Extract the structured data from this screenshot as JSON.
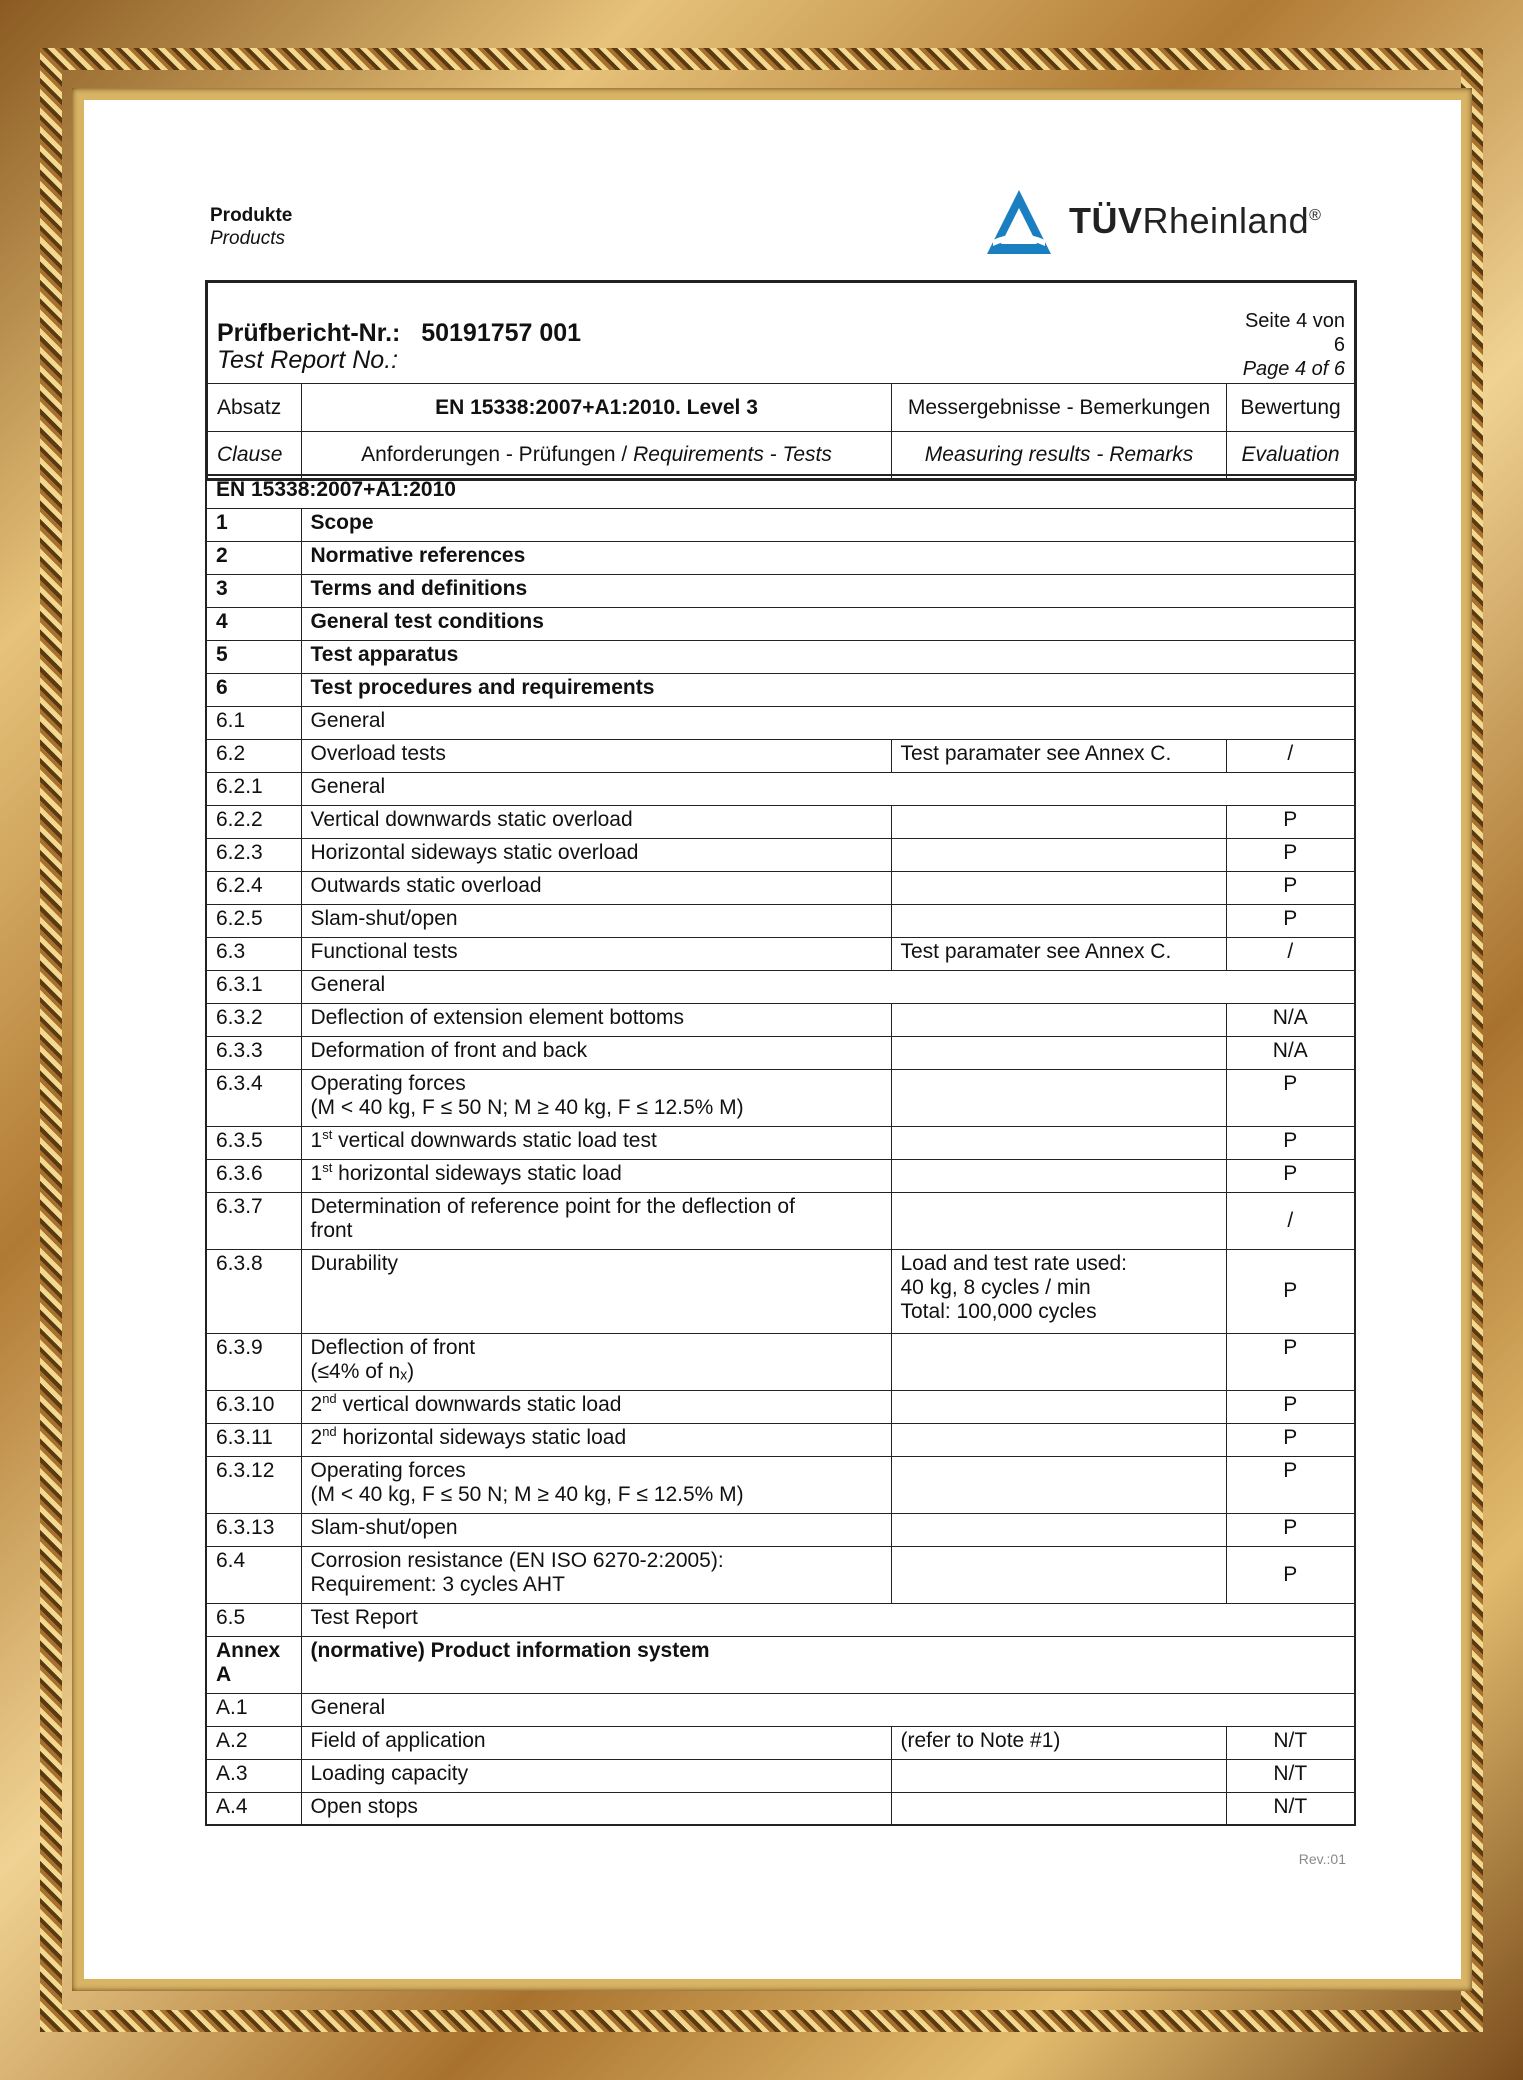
{
  "header": {
    "dept_de": "Produkte",
    "dept_en": "Products",
    "logo_text_bold": "TÜV",
    "logo_text": "Rheinland",
    "logo_mark": "®",
    "logo_color": "#1a7fc1"
  },
  "report": {
    "label_de": "Prüfbericht-Nr.:",
    "number": "50191757 001",
    "label_en": "Test Report No.:",
    "page_de": "Seite 4 von 6",
    "page_en": "Page 4 of 6"
  },
  "columns": {
    "clause_de": "Absatz",
    "clause_en": "Clause",
    "standard": "EN 15338:2007+A1:2010. Level 3",
    "req_de": "Anforderungen - Prüfungen / ",
    "req_en": "Requirements - Tests",
    "remarks_de": "Messergebnisse - Bemerkungen",
    "remarks_en": "Measuring results - Remarks",
    "eval_de": "Bewertung",
    "eval_en": "Evaluation"
  },
  "table_title": "EN 15338:2007+A1:2010",
  "rows": [
    {
      "clause": "1",
      "req": "Scope",
      "bold": true,
      "span": true
    },
    {
      "clause": "2",
      "req": "Normative references",
      "bold": true,
      "span": true
    },
    {
      "clause": "3",
      "req": "Terms and definitions",
      "bold": true,
      "span": true
    },
    {
      "clause": "4",
      "req": "General test conditions",
      "bold": true,
      "span": true
    },
    {
      "clause": "5",
      "req": "Test apparatus",
      "bold": true,
      "span": true
    },
    {
      "clause": "6",
      "req": "Test procedures and requirements",
      "bold": true,
      "span": true
    },
    {
      "clause": "6.1",
      "req": "General",
      "span": true
    },
    {
      "clause": "6.2",
      "req": "Overload tests",
      "remarks": "Test paramater see Annex C.",
      "eval": "/"
    },
    {
      "clause": "6.2.1",
      "req": "General",
      "span": true
    },
    {
      "clause": "6.2.2",
      "req": "Vertical downwards static overload",
      "remarks": "",
      "eval": "P"
    },
    {
      "clause": "6.2.3",
      "req": "Horizontal sideways static overload",
      "remarks": "",
      "eval": "P"
    },
    {
      "clause": "6.2.4",
      "req": "Outwards static overload",
      "remarks": "",
      "eval": "P"
    },
    {
      "clause": "6.2.5",
      "req": "Slam-shut/open",
      "remarks": "",
      "eval": "P"
    },
    {
      "clause": "6.3",
      "req": "Functional tests",
      "remarks": "Test paramater see Annex C.",
      "eval": "/"
    },
    {
      "clause": "6.3.1",
      "req": "General",
      "span": true
    },
    {
      "clause": "6.3.2",
      "req": "Deflection of extension element bottoms",
      "remarks": "",
      "eval": "N/A"
    },
    {
      "clause": "6.3.3",
      "req": "Deformation of front and back",
      "remarks": "",
      "eval": "N/A"
    },
    {
      "clause": "6.3.4",
      "req": "Operating forces\n(M < 40 kg, F ≤ 50 N; M ≥ 40 kg, F ≤ 12.5% M)",
      "remarks": "",
      "eval": "P"
    },
    {
      "clause": "6.3.5",
      "req_pre": "1",
      "req_sup": "st",
      "req": " vertical downwards static load test",
      "remarks": "",
      "eval": "P"
    },
    {
      "clause": "6.3.6",
      "req_pre": "1",
      "req_sup": "st",
      "req": " horizontal sideways static load",
      "remarks": "",
      "eval": "P"
    },
    {
      "clause": "6.3.7",
      "req": "Determination of reference point for the deflection of\nfront",
      "remarks": "",
      "eval": "/",
      "mid": true
    },
    {
      "clause": "6.3.8",
      "req": "Durability",
      "remarks": "Load and test rate used:\n40 kg, 8 cycles / min\nTotal: 100,000 cycles",
      "eval": "P",
      "mid": true
    },
    {
      "clause": "6.3.9",
      "req": "Deflection of front\n(≤4% of nₓ)",
      "remarks": "",
      "eval": "P"
    },
    {
      "clause": "6.3.10",
      "req_pre": "2",
      "req_sup": "nd",
      "req": " vertical downwards static load",
      "remarks": "",
      "eval": "P"
    },
    {
      "clause": "6.3.11",
      "req_pre": "2",
      "req_sup": "nd",
      "req": " horizontal sideways static load",
      "remarks": "",
      "eval": "P"
    },
    {
      "clause": "6.3.12",
      "req": "Operating forces\n(M < 40 kg, F ≤ 50 N; M ≥ 40 kg, F ≤ 12.5% M)",
      "remarks": "",
      "eval": "P"
    },
    {
      "clause": "6.3.13",
      "req": "Slam-shut/open",
      "remarks": "",
      "eval": "P"
    },
    {
      "clause": "6.4",
      "req": "Corrosion resistance (EN ISO 6270-2:2005):\nRequirement: 3 cycles AHT",
      "remarks": "",
      "eval": "P",
      "mid": true
    },
    {
      "clause": "6.5",
      "req": "Test Report",
      "span": true
    },
    {
      "clause": "Annex\nA",
      "req": "(normative) Product information system",
      "bold": true,
      "span": true
    },
    {
      "clause": "A.1",
      "req": "General",
      "span": true
    },
    {
      "clause": "A.2",
      "req": "Field of application",
      "remarks": "(refer to Note #1)",
      "eval": "N/T"
    },
    {
      "clause": "A.3",
      "req": "Loading capacity",
      "remarks": "",
      "eval": "N/T"
    },
    {
      "clause": "A.4",
      "req": "Open stops",
      "remarks": "",
      "eval": "N/T"
    }
  ],
  "footer": {
    "revision": "Rev.:01"
  }
}
